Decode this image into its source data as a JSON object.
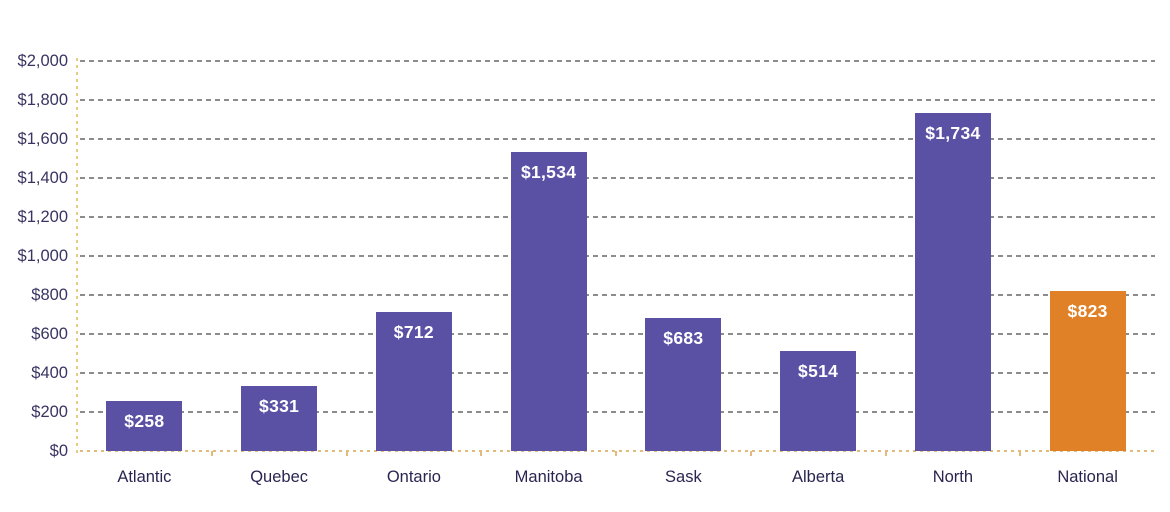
{
  "chart_data": {
    "type": "bar",
    "title": "",
    "xlabel": "",
    "ylabel": "",
    "categories": [
      "Atlantic",
      "Quebec",
      "Ontario",
      "Manitoba",
      "Sask",
      "Alberta",
      "North",
      "National"
    ],
    "values": [
      258,
      331,
      712,
      1534,
      683,
      514,
      1734,
      823
    ],
    "value_labels": [
      "$258",
      "$331",
      "$712",
      "$1,534",
      "$683",
      "$514",
      "$1,734",
      "$823"
    ],
    "bar_colors": [
      "#5a51a4",
      "#5a51a4",
      "#5a51a4",
      "#5a51a4",
      "#5a51a4",
      "#5a51a4",
      "#5a51a4",
      "#e08128"
    ],
    "ylim": [
      0,
      2000
    ],
    "ytick_step": 200,
    "ytick_labels": [
      "$0",
      "$200",
      "$400",
      "$600",
      "$800",
      "$1,000",
      "$1,200",
      "$1,400",
      "$1,600",
      "$1,800",
      "$2,000"
    ],
    "grid": "horizontal-dashed",
    "legend_position": "none",
    "colors": {
      "bar_default": "#5a51a4",
      "bar_highlight": "#e08128",
      "gridline": "#8c8c8c",
      "axis_line_horizontal": "#e2ba7c",
      "axis_line_vertical": "#e8cb80",
      "ytick_label": "#3a3462",
      "category_label": "#2a2550",
      "value_label": "#ffffff",
      "background": "#ffffff"
    }
  }
}
